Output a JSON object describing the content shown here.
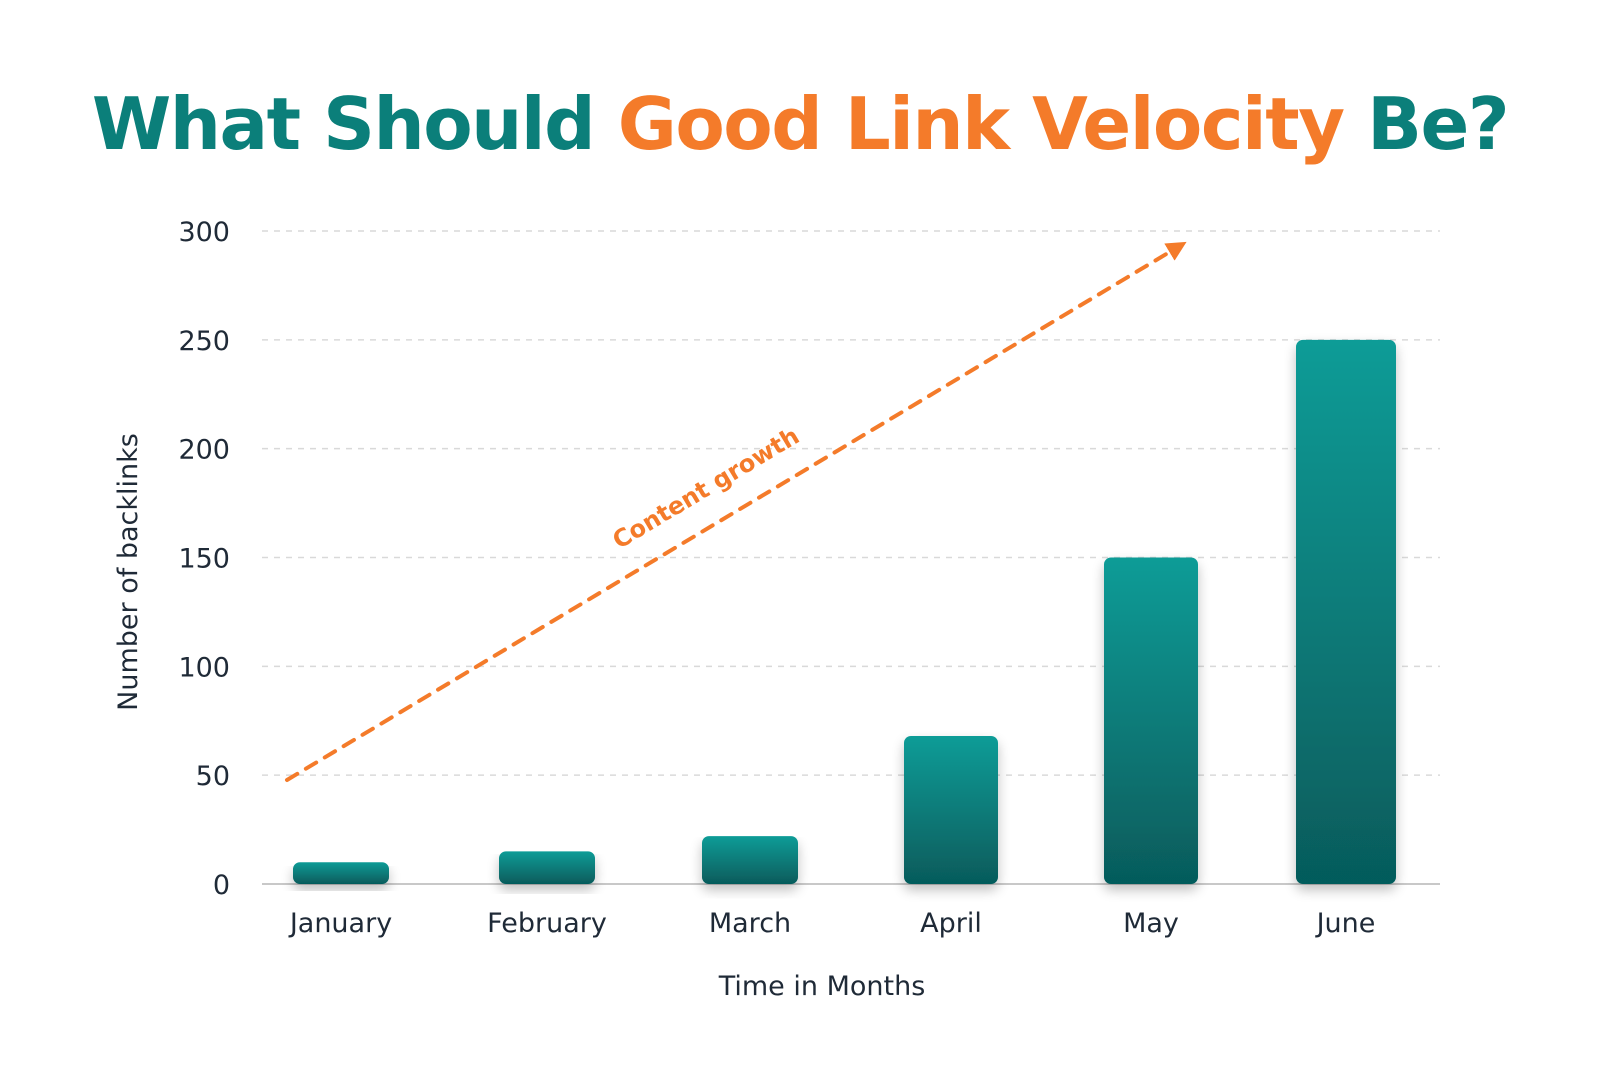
{
  "title": {
    "part1": "What Should ",
    "part2": "Good Link Velocity",
    "part3": " Be?"
  },
  "colors": {
    "teal": "#0b7f7a",
    "orange": "#f47b2a",
    "bar_top": "#0e9c97",
    "bar_bottom": "#065b5b",
    "grid": "#d9d9d9",
    "axis": "#c8c8c8"
  },
  "chart_data": {
    "type": "bar",
    "categories": [
      "January",
      "February",
      "March",
      "April",
      "May",
      "June"
    ],
    "values": [
      10,
      15,
      22,
      68,
      150,
      250
    ],
    "xlabel": "Time in Months",
    "ylabel": "Number of backlinks",
    "ylim": [
      0,
      300
    ],
    "yticks": [
      0,
      50,
      100,
      150,
      200,
      250,
      300
    ],
    "grid": true,
    "annotation": {
      "text": "Content growth",
      "style": "dashed arrow trending upward"
    }
  }
}
